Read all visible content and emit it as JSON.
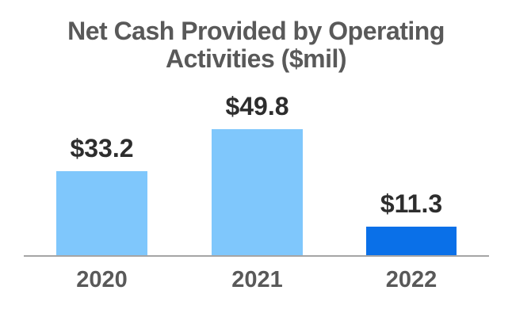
{
  "chart_data": {
    "type": "bar",
    "title": "Net Cash Provided by Operating Activities ($mil)",
    "categories": [
      "2020",
      "2021",
      "2022"
    ],
    "values": [
      33.2,
      49.8,
      11.3
    ],
    "value_labels": [
      "$33.2",
      "$49.8",
      "$11.3"
    ],
    "xlabel": "",
    "ylabel": "",
    "ylim": [
      0,
      55
    ],
    "grid": false,
    "legend": false,
    "bar_colors": [
      "#7FC7FC",
      "#7FC7FC",
      "#0A70E8"
    ]
  },
  "colors": {
    "light_blue": "#7FC7FC",
    "accent_blue": "#0A70E8",
    "title_gray": "#595959",
    "value_label_dark": "#2D2D2D",
    "axis_gray": "#A5A5A5",
    "background": "#FFFFFF"
  }
}
